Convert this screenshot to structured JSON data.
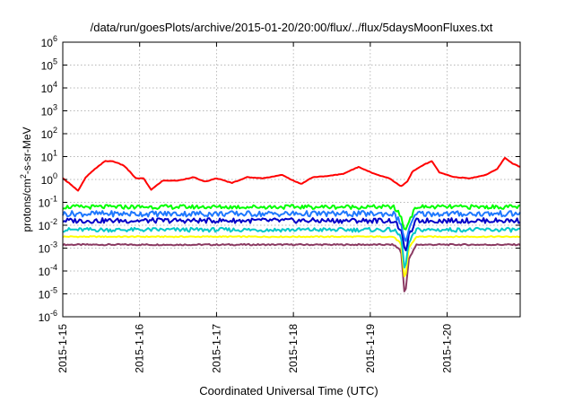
{
  "chart_data": {
    "type": "line",
    "title": "/data/run/goesPlots/archive/2015-01-20/20:00/flux/../flux/5daysMoonFluxes.txt",
    "xlabel": "Coordinated Universal Time (UTC)",
    "ylabel": {
      "base": "protons/cm",
      "exp": "2",
      "rest": "-s-sr-MeV"
    },
    "x_ticks": [
      "2015-1-15",
      "2015-1-16",
      "2015-1-17",
      "2015-1-18",
      "2015-1-19",
      "2015-1-20"
    ],
    "y_scale": "log",
    "y_ticks": [
      {
        "base": "10",
        "exp": "-6"
      },
      {
        "base": "10",
        "exp": "-5"
      },
      {
        "base": "10",
        "exp": "-4"
      },
      {
        "base": "10",
        "exp": "-3"
      },
      {
        "base": "10",
        "exp": "-2"
      },
      {
        "base": "10",
        "exp": "-1"
      },
      {
        "base": "10",
        "exp": "0"
      },
      {
        "base": "10",
        "exp": "1"
      },
      {
        "base": "10",
        "exp": "2"
      },
      {
        "base": "10",
        "exp": "3"
      },
      {
        "base": "10",
        "exp": "4"
      },
      {
        "base": "10",
        "exp": "5"
      },
      {
        "base": "10",
        "exp": "6"
      }
    ],
    "xlim_days": [
      0,
      5.95
    ],
    "ylim_log10": [
      -6,
      6
    ],
    "grid": true,
    "series": [
      {
        "color": "#8b3a62",
        "x": [
          0,
          0.5,
          1,
          1.5,
          2,
          2.5,
          3,
          3.5,
          4,
          4.3,
          4.4,
          4.45,
          4.5,
          4.6,
          5,
          5.5,
          5.95
        ],
        "y_log10": [
          -2.85,
          -2.85,
          -2.85,
          -2.85,
          -2.85,
          -2.85,
          -2.85,
          -2.85,
          -2.85,
          -2.85,
          -3.1,
          -5.2,
          -3.5,
          -2.85,
          -2.85,
          -2.85,
          -2.85
        ]
      },
      {
        "color": "#ffff00",
        "x": [
          0,
          0.5,
          1,
          1.5,
          2,
          2.5,
          3,
          3.5,
          4,
          4.3,
          4.4,
          4.45,
          4.5,
          4.6,
          5,
          5.5,
          5.95
        ],
        "y_log10": [
          -2.5,
          -2.5,
          -2.5,
          -2.5,
          -2.5,
          -2.5,
          -2.5,
          -2.5,
          -2.5,
          -2.5,
          -2.8,
          -4.5,
          -3.0,
          -2.5,
          -2.5,
          -2.5,
          -2.5
        ]
      },
      {
        "color": "#00c8c8",
        "x": [
          0,
          0.5,
          1,
          1.5,
          2,
          2.5,
          3,
          3.5,
          4,
          4.3,
          4.4,
          4.45,
          4.5,
          4.6,
          5,
          5.5,
          5.95
        ],
        "y_log10": [
          -2.2,
          -2.2,
          -2.2,
          -2.2,
          -2.2,
          -2.2,
          -2.2,
          -2.2,
          -2.2,
          -2.2,
          -2.5,
          -4.0,
          -2.8,
          -2.2,
          -2.2,
          -2.2,
          -2.2
        ]
      },
      {
        "color": "#0000c8",
        "x": [
          0,
          0.5,
          1,
          1.5,
          2,
          2.5,
          3,
          3.5,
          4,
          4.3,
          4.4,
          4.45,
          4.5,
          4.6,
          5,
          5.5,
          5.95
        ],
        "y_log10": [
          -1.8,
          -1.8,
          -1.8,
          -1.8,
          -1.8,
          -1.8,
          -1.8,
          -1.8,
          -1.8,
          -1.8,
          -2.2,
          -3.2,
          -2.5,
          -1.8,
          -1.8,
          -1.8,
          -1.8
        ]
      },
      {
        "color": "#1e78ff",
        "x": [
          0,
          0.5,
          1,
          1.5,
          2,
          2.5,
          3,
          3.5,
          4,
          4.3,
          4.4,
          4.45,
          4.5,
          4.6,
          5,
          5.5,
          5.95
        ],
        "y_log10": [
          -1.5,
          -1.5,
          -1.5,
          -1.5,
          -1.5,
          -1.5,
          -1.5,
          -1.5,
          -1.5,
          -1.5,
          -1.9,
          -2.8,
          -2.2,
          -1.5,
          -1.5,
          -1.5,
          -1.5
        ]
      },
      {
        "color": "#00ff00",
        "x": [
          0,
          0.5,
          1,
          1.5,
          2,
          2.5,
          3,
          3.5,
          4,
          4.3,
          4.4,
          4.45,
          4.5,
          4.6,
          5,
          5.5,
          5.95
        ],
        "y_log10": [
          -1.2,
          -1.2,
          -1.2,
          -1.2,
          -1.2,
          -1.2,
          -1.2,
          -1.2,
          -1.2,
          -1.2,
          -1.6,
          -2.3,
          -1.8,
          -1.2,
          -1.2,
          -1.2,
          -1.2
        ]
      },
      {
        "color": "#ff0000",
        "x": [
          0,
          0.1,
          0.2,
          0.3,
          0.45,
          0.55,
          0.65,
          0.8,
          0.95,
          1.05,
          1.15,
          1.3,
          1.5,
          1.7,
          1.85,
          2.0,
          2.2,
          2.4,
          2.6,
          2.85,
          3.0,
          3.1,
          3.25,
          3.45,
          3.65,
          3.85,
          4.05,
          4.25,
          4.4,
          4.48,
          4.55,
          4.7,
          4.8,
          4.9,
          5.1,
          5.3,
          5.5,
          5.65,
          5.75,
          5.85,
          5.95
        ],
        "y_log10": [
          0.05,
          -0.2,
          -0.5,
          0.1,
          0.55,
          0.8,
          0.8,
          0.6,
          0.05,
          0.05,
          -0.45,
          -0.05,
          -0.05,
          0.1,
          -0.1,
          0.05,
          -0.15,
          0.1,
          0.05,
          0.2,
          -0.05,
          -0.2,
          0.1,
          0.15,
          0.25,
          0.55,
          0.25,
          0.05,
          -0.3,
          -0.1,
          0.35,
          0.65,
          0.8,
          0.3,
          0.1,
          0.05,
          0.2,
          0.45,
          0.95,
          0.7,
          0.55
        ]
      }
    ]
  }
}
